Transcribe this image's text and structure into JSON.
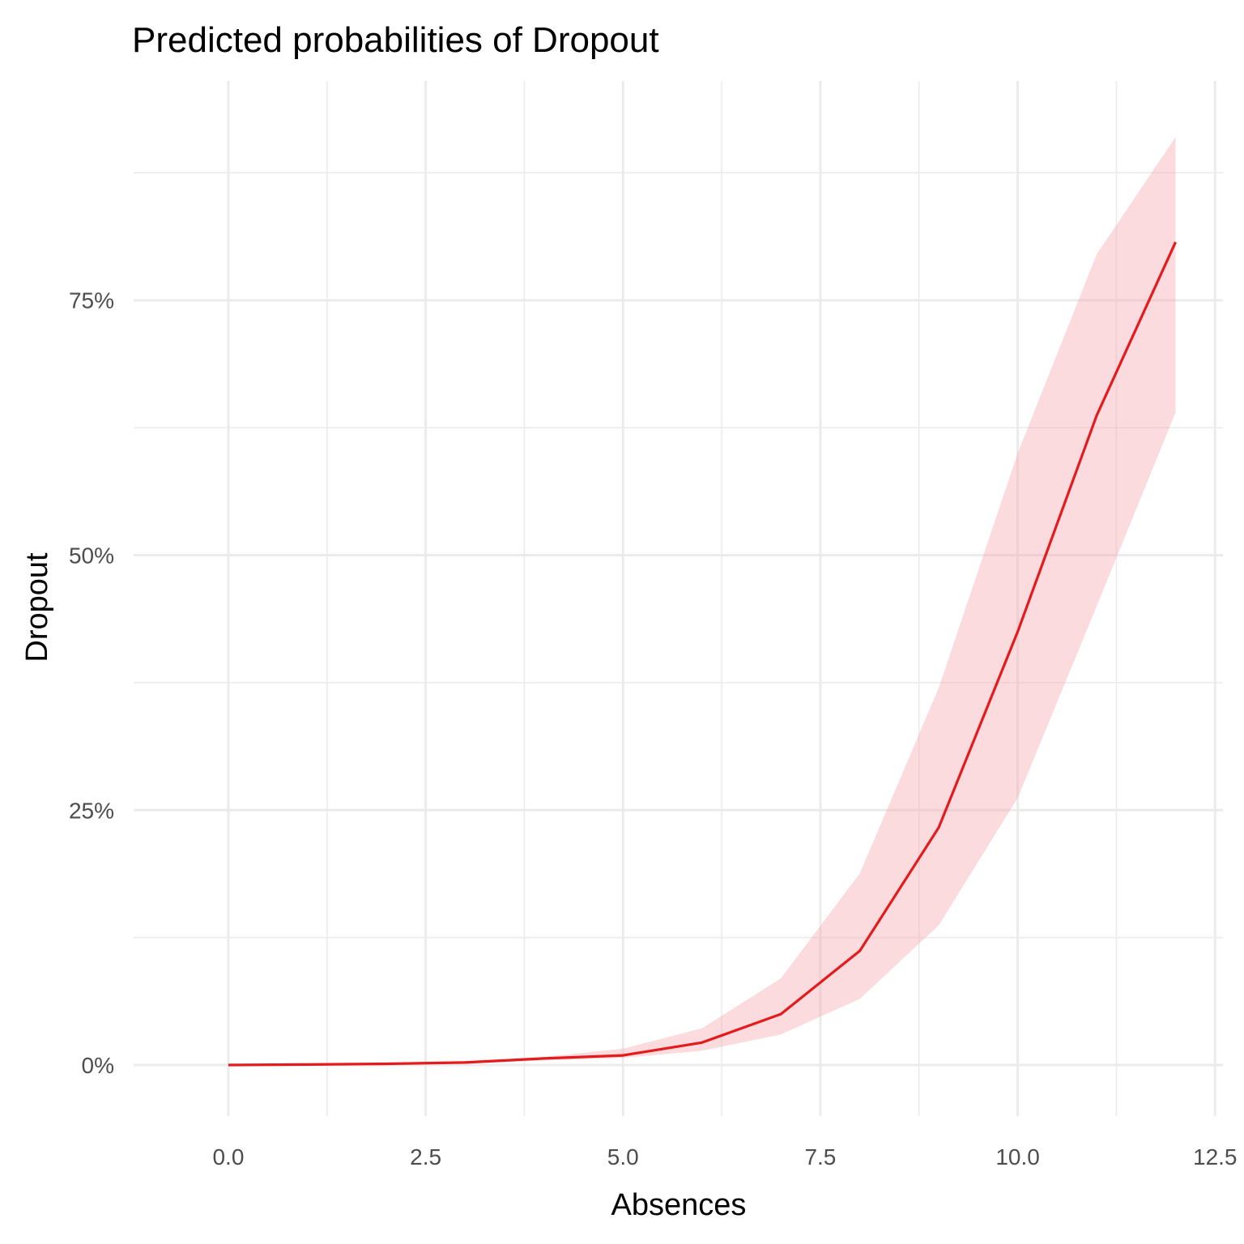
{
  "chart_data": {
    "type": "line",
    "title": "Predicted probabilities of Dropout",
    "xlabel": "Absences",
    "ylabel": "Dropout",
    "xlim": [
      -1.2,
      12.6
    ],
    "ylim": [
      -0.05,
      0.965
    ],
    "x_ticks": [
      0,
      2.5,
      5,
      7.5,
      10,
      12.5
    ],
    "x_tick_labels": [
      "0.0",
      "2.5",
      "5.0",
      "7.5",
      "10.0",
      "12.5"
    ],
    "y_ticks": [
      0,
      0.25,
      0.5,
      0.75
    ],
    "y_tick_labels": [
      "0%",
      "25%",
      "50%",
      "75%"
    ],
    "grid": true,
    "series": [
      {
        "color": "#e41a1c",
        "band_color": "#f4a6aa",
        "x": [
          0,
          1,
          2,
          3,
          4,
          5,
          6,
          7,
          8,
          9,
          10,
          11,
          12
        ],
        "y": [
          0.0,
          0.0005,
          0.0012,
          0.0025,
          0.0065,
          0.0095,
          0.022,
          0.05,
          0.112,
          0.233,
          0.425,
          0.637,
          0.807
        ],
        "lower": [
          0.0,
          0.0002,
          0.0006,
          0.0015,
          0.0045,
          0.007,
          0.014,
          0.03,
          0.065,
          0.137,
          0.262,
          0.45,
          0.64
        ],
        "upper": [
          0.0,
          0.0008,
          0.002,
          0.004,
          0.008,
          0.016,
          0.036,
          0.085,
          0.188,
          0.37,
          0.6,
          0.795,
          0.91
        ]
      }
    ]
  }
}
